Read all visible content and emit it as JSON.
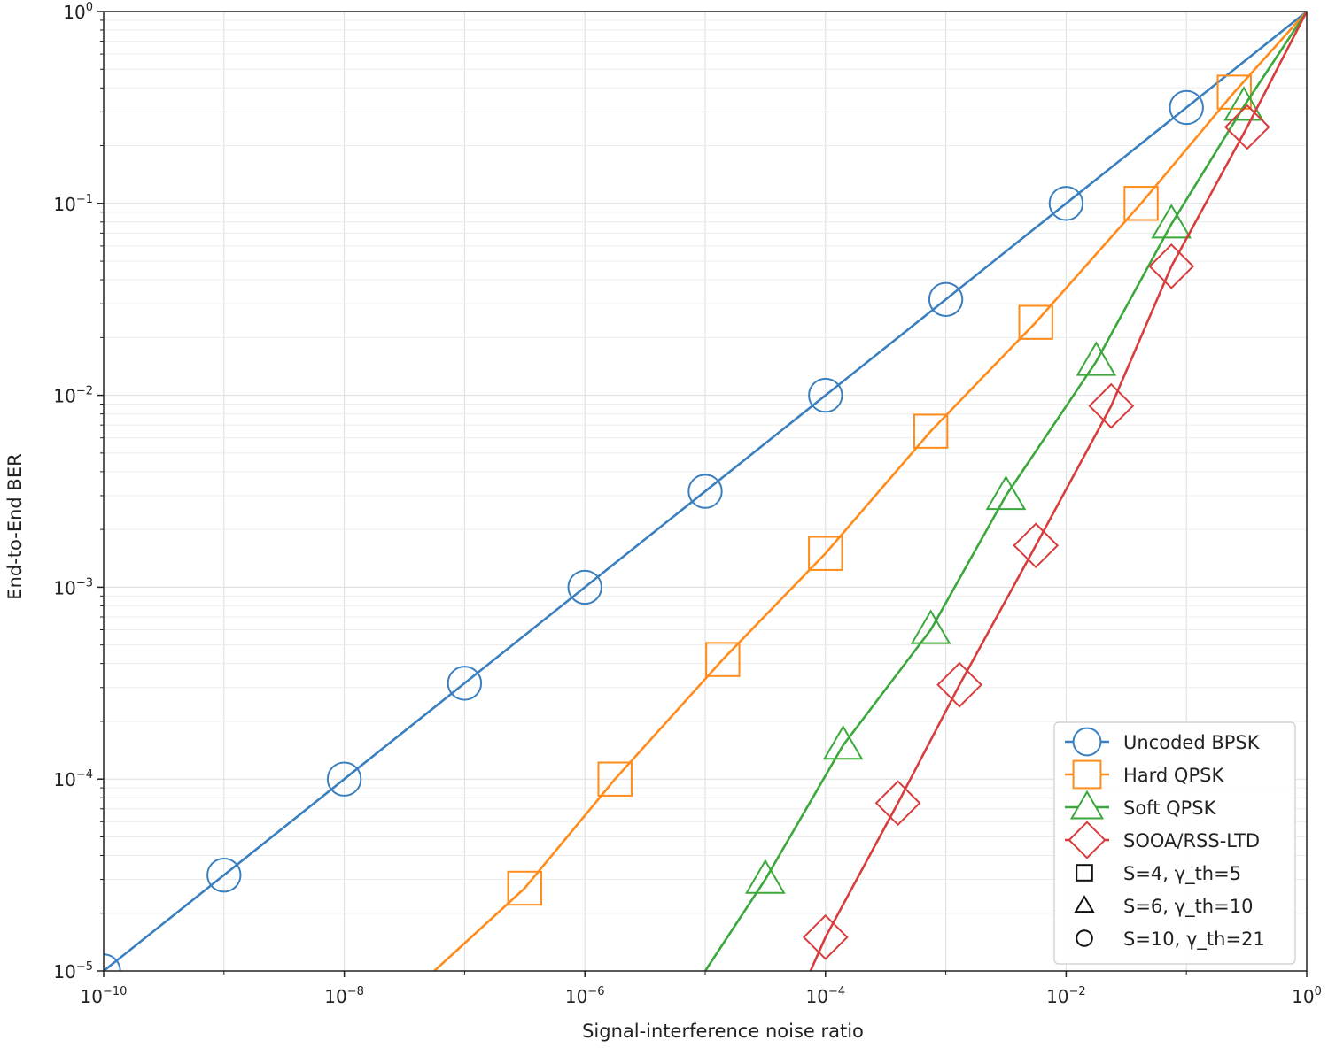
{
  "chart_data": {
    "type": "line",
    "xscale": "log",
    "yscale": "log",
    "xlim": [
      1e-10,
      1
    ],
    "ylim": [
      1e-05,
      1
    ],
    "xlabel": "Signal-interference noise ratio",
    "ylabel": "End-to-End BER",
    "grid": true,
    "legend_position": "bottom-right",
    "x_ticks": [
      {
        "base": "10",
        "exp": "−10"
      },
      {
        "base": "10",
        "exp": "−8"
      },
      {
        "base": "10",
        "exp": "−6"
      },
      {
        "base": "10",
        "exp": "−4"
      },
      {
        "base": "10",
        "exp": "−2"
      },
      {
        "base": "10",
        "exp": "0"
      }
    ],
    "y_ticks": [
      {
        "base": "10",
        "exp": "−5"
      },
      {
        "base": "10",
        "exp": "−4"
      },
      {
        "base": "10",
        "exp": "−3"
      },
      {
        "base": "10",
        "exp": "−2"
      },
      {
        "base": "10",
        "exp": "−1"
      },
      {
        "base": "10",
        "exp": "0"
      }
    ],
    "series": [
      {
        "name": "Uncoded BPSK",
        "color": "#3a7fbf",
        "marker": "circle",
        "points": [
          [
            1e-10,
            1e-05
          ],
          [
            1e-09,
            3.16e-05
          ],
          [
            1e-08,
            0.0001
          ],
          [
            1e-07,
            0.000316
          ],
          [
            1e-06,
            0.001
          ],
          [
            1e-05,
            0.00316
          ],
          [
            0.0001,
            0.01
          ],
          [
            0.001,
            0.0316
          ],
          [
            0.01,
            0.1
          ],
          [
            0.1,
            0.316
          ],
          [
            1,
            1
          ]
        ],
        "markers": [
          [
            1e-10,
            1e-05
          ],
          [
            1e-09,
            3.16e-05
          ],
          [
            1e-08,
            0.0001
          ],
          [
            1e-07,
            0.000316
          ],
          [
            1e-06,
            0.001
          ],
          [
            1e-05,
            0.00316
          ],
          [
            0.0001,
            0.01
          ],
          [
            0.001,
            0.0316
          ],
          [
            0.01,
            0.1
          ],
          [
            0.1,
            0.316
          ]
        ]
      },
      {
        "name": "Hard QPSK",
        "color": "#ff8c1a",
        "marker": "square",
        "points": [
          [
            5.6e-08,
            1e-05
          ],
          [
            3.16e-07,
            2.7e-05
          ],
          [
            1.78e-06,
            0.0001
          ],
          [
            1.4e-05,
            0.00042
          ],
          [
            0.0001,
            0.0015
          ],
          [
            0.00075,
            0.0065
          ],
          [
            0.0056,
            0.024
          ],
          [
            0.042,
            0.1
          ],
          [
            0.25,
            0.38
          ],
          [
            1,
            1
          ]
        ],
        "markers": [
          [
            3.16e-07,
            2.7e-05
          ],
          [
            1.78e-06,
            0.0001
          ],
          [
            1.4e-05,
            0.00042
          ],
          [
            0.0001,
            0.0015
          ],
          [
            0.00075,
            0.0065
          ],
          [
            0.0056,
            0.024
          ],
          [
            0.042,
            0.1
          ],
          [
            0.25,
            0.38
          ]
        ]
      },
      {
        "name": "Soft QPSK",
        "color": "#3aa83a",
        "marker": "triangle",
        "points": [
          [
            1e-05,
            1e-05
          ],
          [
            3.16e-05,
            3e-05
          ],
          [
            0.00014,
            0.00015
          ],
          [
            0.00075,
            0.0006
          ],
          [
            0.00316,
            0.003
          ],
          [
            0.0178,
            0.015
          ],
          [
            0.075,
            0.078
          ],
          [
            0.3,
            0.32
          ],
          [
            1,
            1
          ]
        ],
        "markers": [
          [
            3.16e-05,
            3e-05
          ],
          [
            0.00014,
            0.00015
          ],
          [
            0.00075,
            0.0006
          ],
          [
            0.00316,
            0.003
          ],
          [
            0.0178,
            0.015
          ],
          [
            0.075,
            0.078
          ],
          [
            0.3,
            0.32
          ]
        ]
      },
      {
        "name": "SOOA/RSS-LTD",
        "color": "#d83c3c",
        "marker": "diamond",
        "points": [
          [
            7.5e-05,
            1e-05
          ],
          [
            0.0001,
            1.5e-05
          ],
          [
            0.0004,
            7.5e-05
          ],
          [
            0.0013,
            0.00031
          ],
          [
            0.0056,
            0.00165
          ],
          [
            0.0237,
            0.0088
          ],
          [
            0.075,
            0.047
          ],
          [
            0.32,
            0.25
          ],
          [
            1,
            1
          ]
        ],
        "markers": [
          [
            0.0001,
            1.5e-05
          ],
          [
            0.0004,
            7.5e-05
          ],
          [
            0.0013,
            0.00031
          ],
          [
            0.0056,
            0.00165
          ],
          [
            0.0237,
            0.0088
          ],
          [
            0.075,
            0.047
          ],
          [
            0.32,
            0.25
          ]
        ]
      }
    ],
    "legend": [
      {
        "label": "Uncoded BPSK",
        "kind": "line",
        "marker": "circle",
        "color": "#3a7fbf"
      },
      {
        "label": "Hard QPSK",
        "kind": "line",
        "marker": "square",
        "color": "#ff8c1a"
      },
      {
        "label": "Soft QPSK",
        "kind": "line",
        "marker": "triangle",
        "color": "#3aa83a"
      },
      {
        "label": "SOOA/RSS-LTD",
        "kind": "line",
        "marker": "diamond",
        "color": "#d83c3c"
      },
      {
        "label": "S=4, γ_th=5",
        "kind": "marker",
        "marker": "square",
        "color": "#111111"
      },
      {
        "label": "S=6, γ_th=10",
        "kind": "marker",
        "marker": "triangle",
        "color": "#111111"
      },
      {
        "label": "S=10, γ_th=21",
        "kind": "marker",
        "marker": "circle",
        "color": "#111111"
      }
    ]
  }
}
